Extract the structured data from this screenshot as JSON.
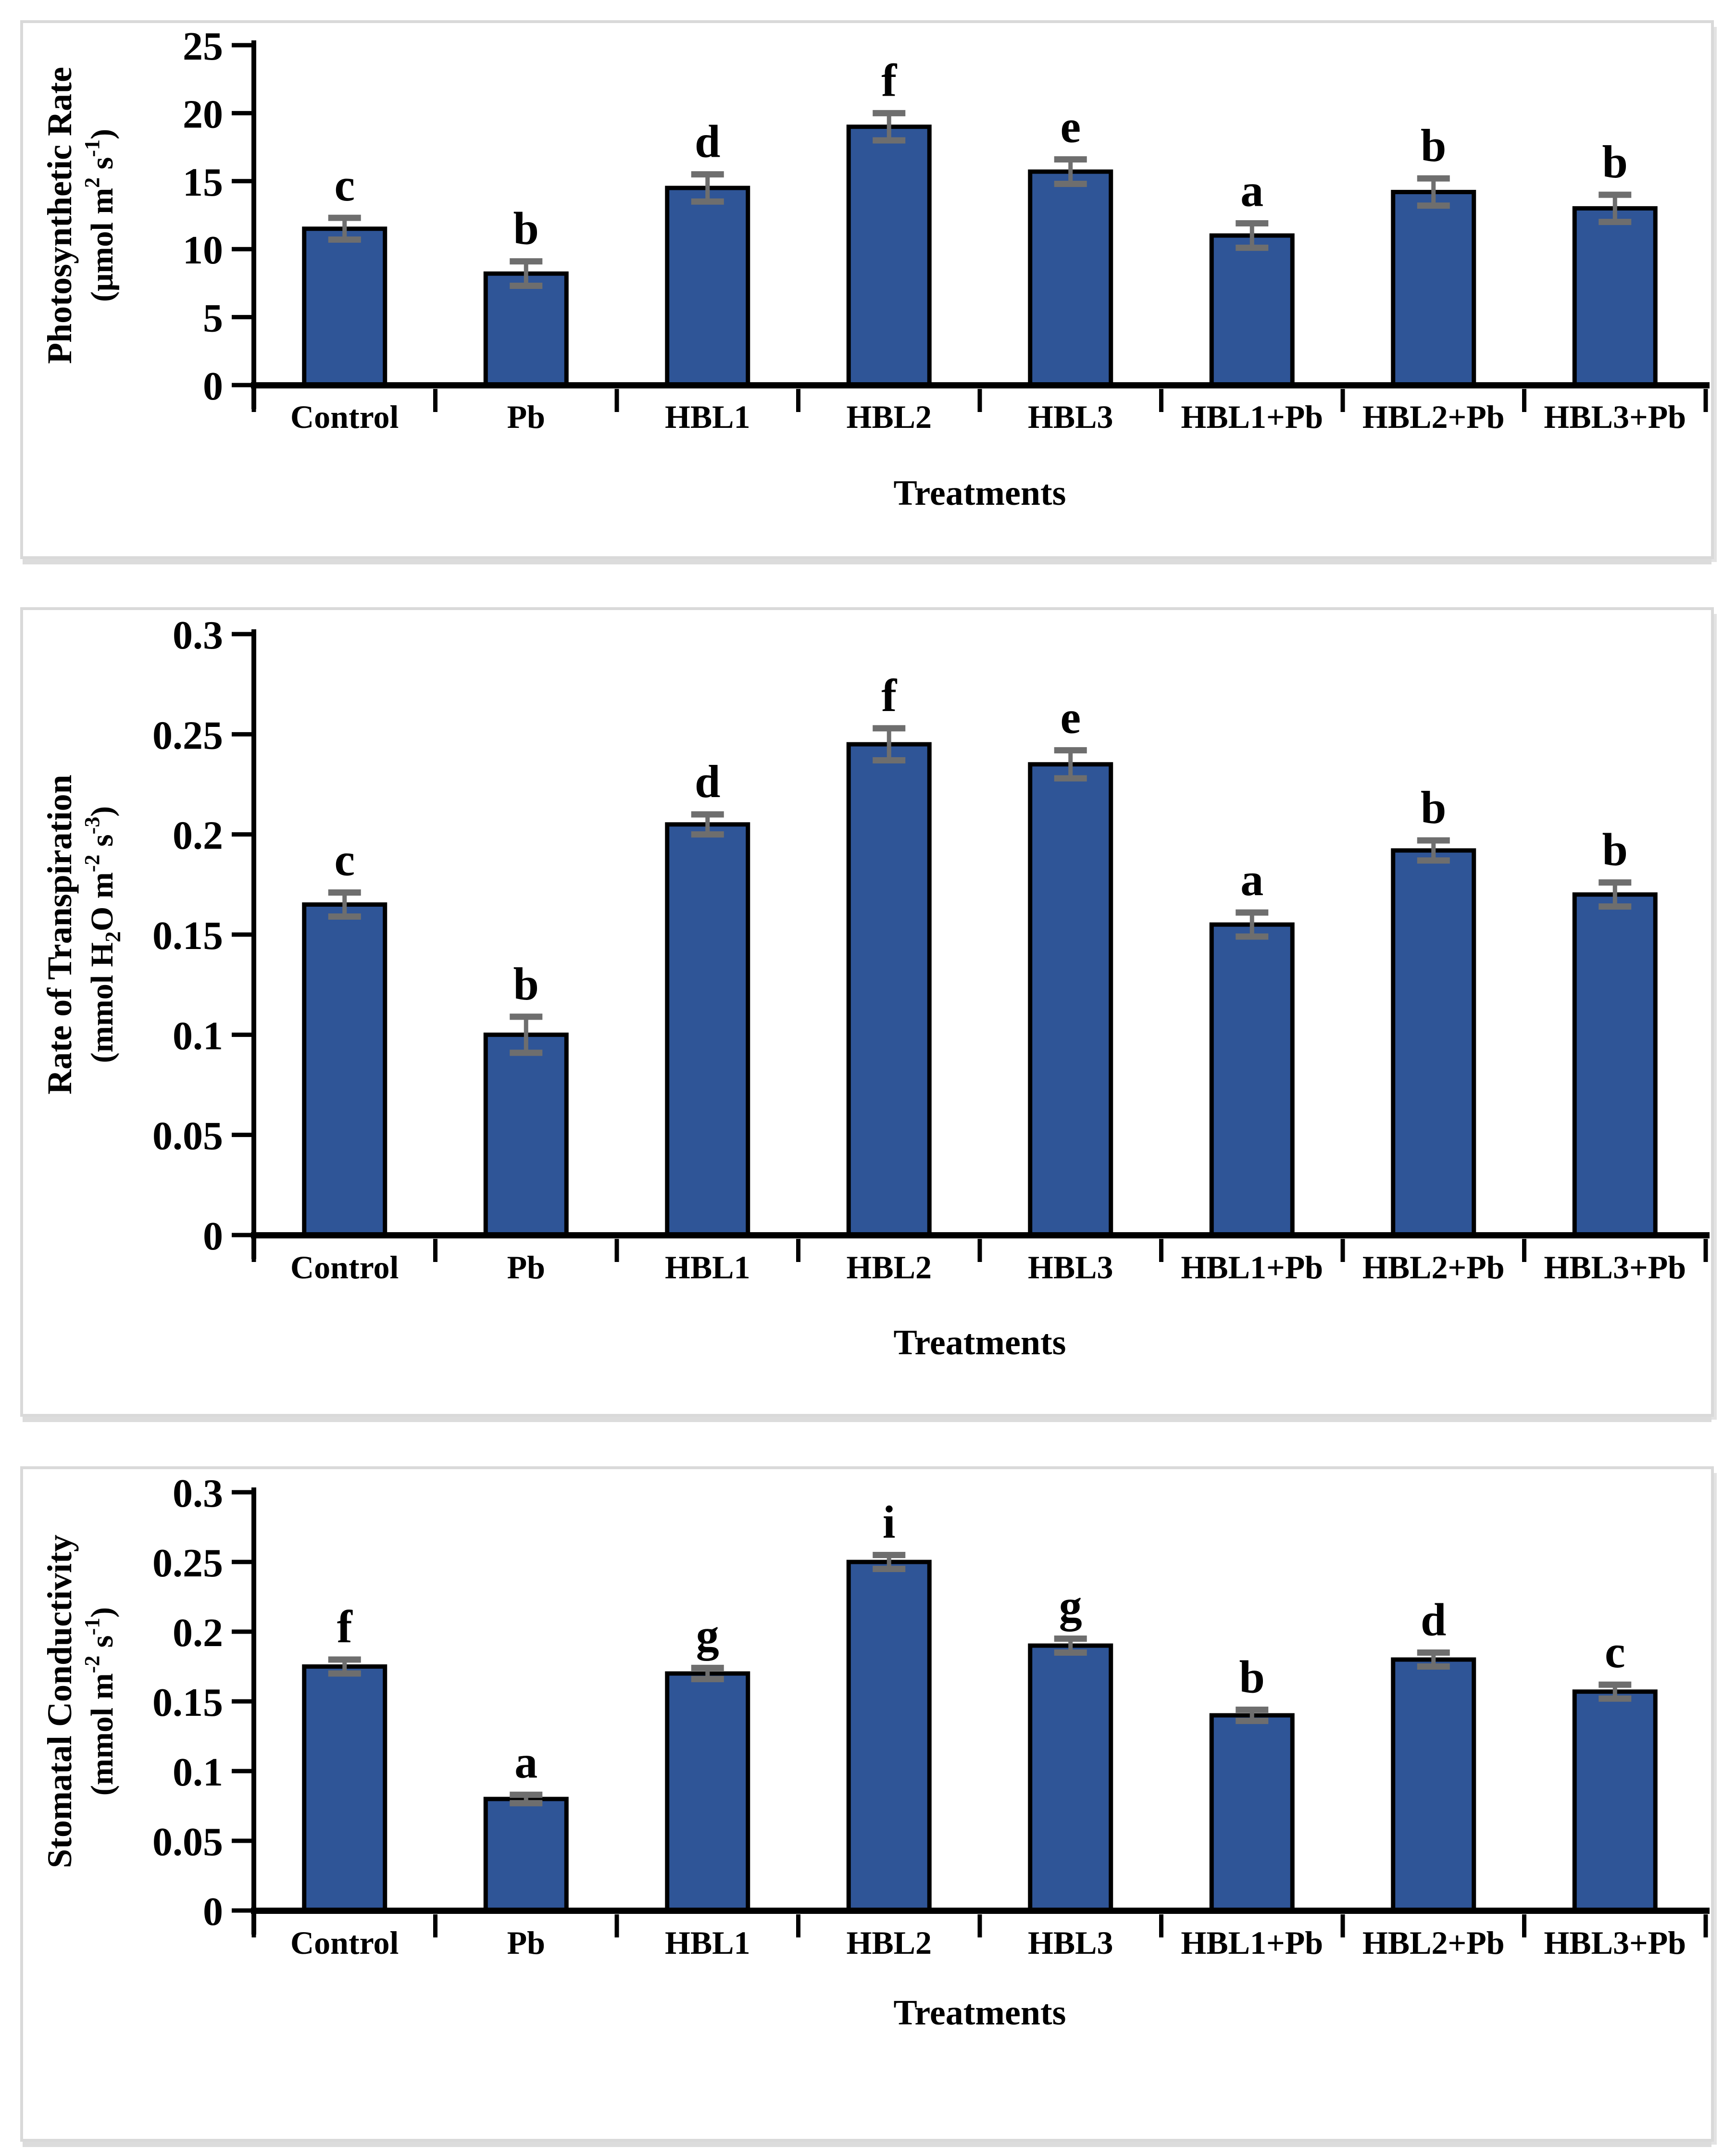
{
  "figure": {
    "background": "#ffffff",
    "panel_border_color": "#d9d9d9",
    "bar_color": "#2F5597",
    "bar_outline_color": "#000000",
    "error_bar_color": "#6E6E6E",
    "axis_color": "#000000",
    "x_axis_title": "Treatments",
    "categories": [
      "Control",
      "Pb",
      "HBL1",
      "HBL2",
      "HBL3",
      "HBL1+Pb",
      "HBL2+Pb",
      "HBL3+Pb"
    ]
  },
  "chart_data": [
    {
      "type": "bar",
      "title": "",
      "xlabel": "Treatments",
      "ylabel_lines": [
        [
          {
            "t": "Photosynthetic Rate"
          }
        ],
        [
          {
            "t": "(μmol m"
          },
          {
            "sup": "2"
          },
          {
            "t": " s"
          },
          {
            "sup": "-1"
          },
          {
            "t": ")"
          }
        ]
      ],
      "categories": [
        "Control",
        "Pb",
        "HBL1",
        "HBL2",
        "HBL3",
        "HBL1+Pb",
        "HBL2+Pb",
        "HBL3+Pb"
      ],
      "values": [
        11.5,
        8.2,
        14.5,
        19,
        15.7,
        11,
        14.2,
        13
      ],
      "errors": [
        0.8,
        0.9,
        1.0,
        1.0,
        0.9,
        0.9,
        1.0,
        1.0
      ],
      "sig_letters": [
        "c",
        "b",
        "d",
        "f",
        "e",
        "a",
        "b",
        "b"
      ],
      "ylim": [
        0,
        25
      ],
      "yticks": [
        {
          "value": 0,
          "label": "0"
        },
        {
          "value": 5,
          "label": "5"
        },
        {
          "value": 10,
          "label": "10"
        },
        {
          "value": 15,
          "label": "15"
        },
        {
          "value": 20,
          "label": "20"
        },
        {
          "value": 25,
          "label": "25"
        }
      ],
      "grid": false,
      "legend": "none"
    },
    {
      "type": "bar",
      "title": "",
      "xlabel": "Treatments",
      "ylabel_lines": [
        [
          {
            "t": "Rate of Transpiration"
          }
        ],
        [
          {
            "t": "(mmol H"
          },
          {
            "sub": "2"
          },
          {
            "t": "O m"
          },
          {
            "sup": "-2"
          },
          {
            "t": " s"
          },
          {
            "sup": "-3"
          },
          {
            "t": ")"
          }
        ]
      ],
      "categories": [
        "Control",
        "Pb",
        "HBL1",
        "HBL2",
        "HBL3",
        "HBL1+Pb",
        "HBL2+Pb",
        "HBL3+Pb"
      ],
      "values": [
        0.165,
        0.1,
        0.205,
        0.245,
        0.235,
        0.155,
        0.192,
        0.17
      ],
      "errors": [
        0.006,
        0.009,
        0.005,
        0.008,
        0.007,
        0.006,
        0.005,
        0.006
      ],
      "sig_letters": [
        "c",
        "b",
        "d",
        "f",
        "e",
        "a",
        "b",
        "b"
      ],
      "ylim": [
        0,
        0.3
      ],
      "yticks": [
        {
          "value": 0,
          "label": "0"
        },
        {
          "value": 0.05,
          "label": "0.05"
        },
        {
          "value": 0.1,
          "label": "0.1"
        },
        {
          "value": 0.15,
          "label": "0.15"
        },
        {
          "value": 0.2,
          "label": "0.2"
        },
        {
          "value": 0.25,
          "label": "0.25"
        },
        {
          "value": 0.3,
          "label": "0.3"
        }
      ],
      "grid": false,
      "legend": "none"
    },
    {
      "type": "bar",
      "title": "",
      "xlabel": "Treatments",
      "ylabel_lines": [
        [
          {
            "t": "Stomatal Conductivity"
          }
        ],
        [
          {
            "t": "(mmol m"
          },
          {
            "sup": "-2"
          },
          {
            "t": " s"
          },
          {
            "sup": "-1"
          },
          {
            "t": ")"
          }
        ]
      ],
      "categories": [
        "Control",
        "Pb",
        "HBL1",
        "HBL2",
        "HBL3",
        "HBL1+Pb",
        "HBL2+Pb",
        "HBL3+Pb"
      ],
      "values": [
        0.175,
        0.08,
        0.17,
        0.25,
        0.19,
        0.14,
        0.18,
        0.157
      ],
      "errors": [
        0.005,
        0.003,
        0.004,
        0.005,
        0.005,
        0.004,
        0.005,
        0.005
      ],
      "sig_letters": [
        "f",
        "a",
        "g",
        "i",
        "g",
        "b",
        "d",
        "c"
      ],
      "ylim": [
        0,
        0.3
      ],
      "yticks": [
        {
          "value": 0,
          "label": "0"
        },
        {
          "value": 0.05,
          "label": "0.05"
        },
        {
          "value": 0.1,
          "label": "0.1"
        },
        {
          "value": 0.15,
          "label": "0.15"
        },
        {
          "value": 0.2,
          "label": "0.2"
        },
        {
          "value": 0.25,
          "label": "0.25"
        },
        {
          "value": 0.3,
          "label": "0.3"
        }
      ],
      "grid": false,
      "legend": "none"
    }
  ]
}
